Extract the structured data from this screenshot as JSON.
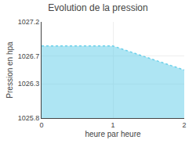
{
  "chart_data": {
    "type": "area",
    "title": "Evolution de la pression",
    "xlabel": "heure par heure",
    "ylabel": "Pression en hpa",
    "x": [
      0,
      1,
      2
    ],
    "values": [
      1026.85,
      1026.85,
      1026.5
    ],
    "color": "#6cd0ea",
    "line_style": "dotted",
    "xlim": [
      0,
      2
    ],
    "xticks": [
      0,
      1,
      2
    ],
    "ylim": [
      1025.8,
      1027.2
    ],
    "yticks": [
      1025.8,
      1026.3,
      1026.7,
      1027.2
    ],
    "grid": true
  }
}
